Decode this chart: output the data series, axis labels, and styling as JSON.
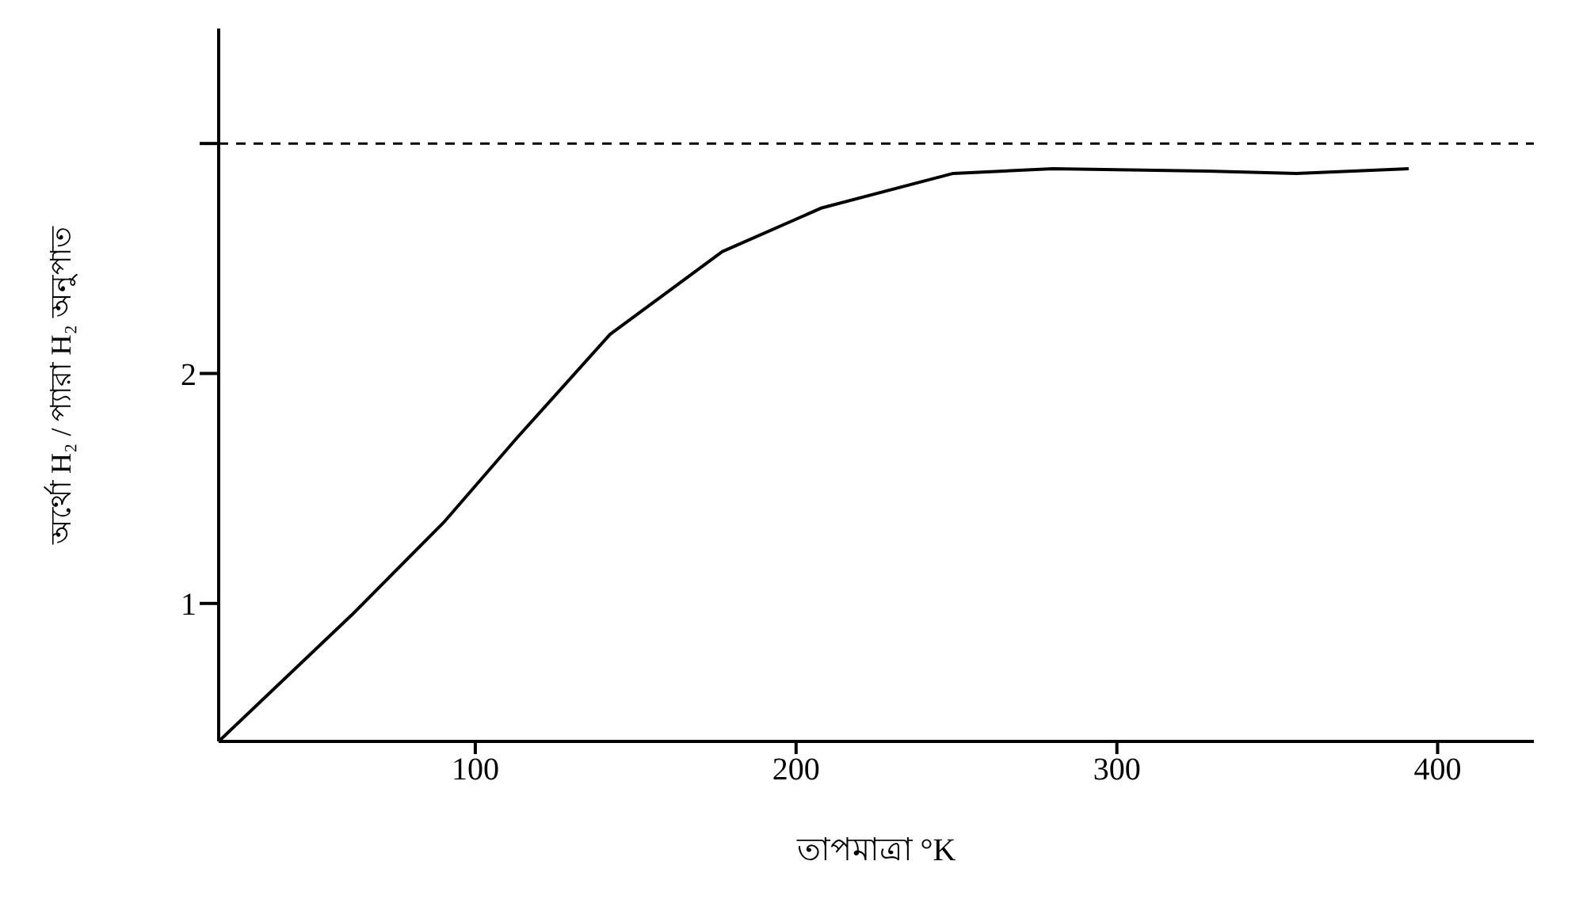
{
  "chart_data": {
    "type": "line",
    "xlabel": "তাপমাত্রা °K",
    "ylabel": "অর্থো H₂ / প্যারা H₂ অনুপাত",
    "xlim": [
      20,
      430
    ],
    "xticks": [
      100,
      200,
      300,
      400
    ],
    "ylim": [
      0.4,
      3.5
    ],
    "yticks": [
      1,
      2,
      {
        "value": 3,
        "label": null
      }
    ],
    "grid": false,
    "legend": false,
    "marker": "none",
    "line_style": "solid",
    "series": [
      {
        "color": "#000000",
        "x": [
          20,
          61.5,
          90,
          113,
          142,
          177,
          208,
          249,
          280,
          328,
          356,
          391
        ],
        "values": [
          0.4,
          0.95,
          1.35,
          1.72,
          2.17,
          2.53,
          2.72,
          2.87,
          2.89,
          2.88,
          2.87,
          2.89
        ]
      }
    ],
    "ref_lines": [
      {
        "axis": "y",
        "value": 3,
        "line_style": "dashed",
        "color": "#000000"
      }
    ]
  }
}
